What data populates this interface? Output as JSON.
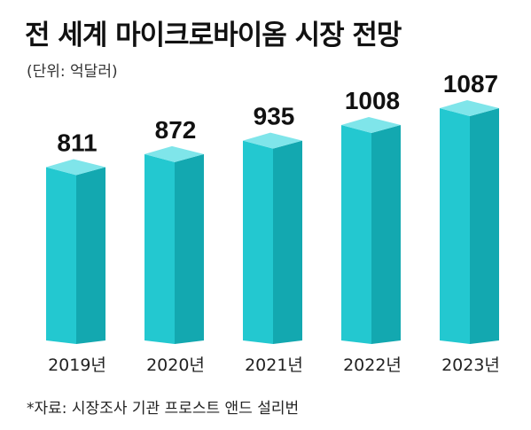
{
  "title": "전 세계 마이크로바이옴 시장 전망",
  "unit_note": "(단위: 억달러)",
  "source": "*자료: 시장조사 기관 프로스트 앤드 설리번",
  "colors": {
    "bar_front": "#23c8d0",
    "bar_side": "#13a8b0",
    "bar_top": "#7fe5ea"
  },
  "chart_data": {
    "type": "bar",
    "title": "전 세계 마이크로바이옴 시장 전망",
    "categories": [
      "2019년",
      "2020년",
      "2021년",
      "2022년",
      "2023년"
    ],
    "values": [
      811,
      872,
      935,
      1008,
      1087
    ],
    "xlabel": "",
    "ylabel": "",
    "grid": false,
    "legend": "none"
  }
}
